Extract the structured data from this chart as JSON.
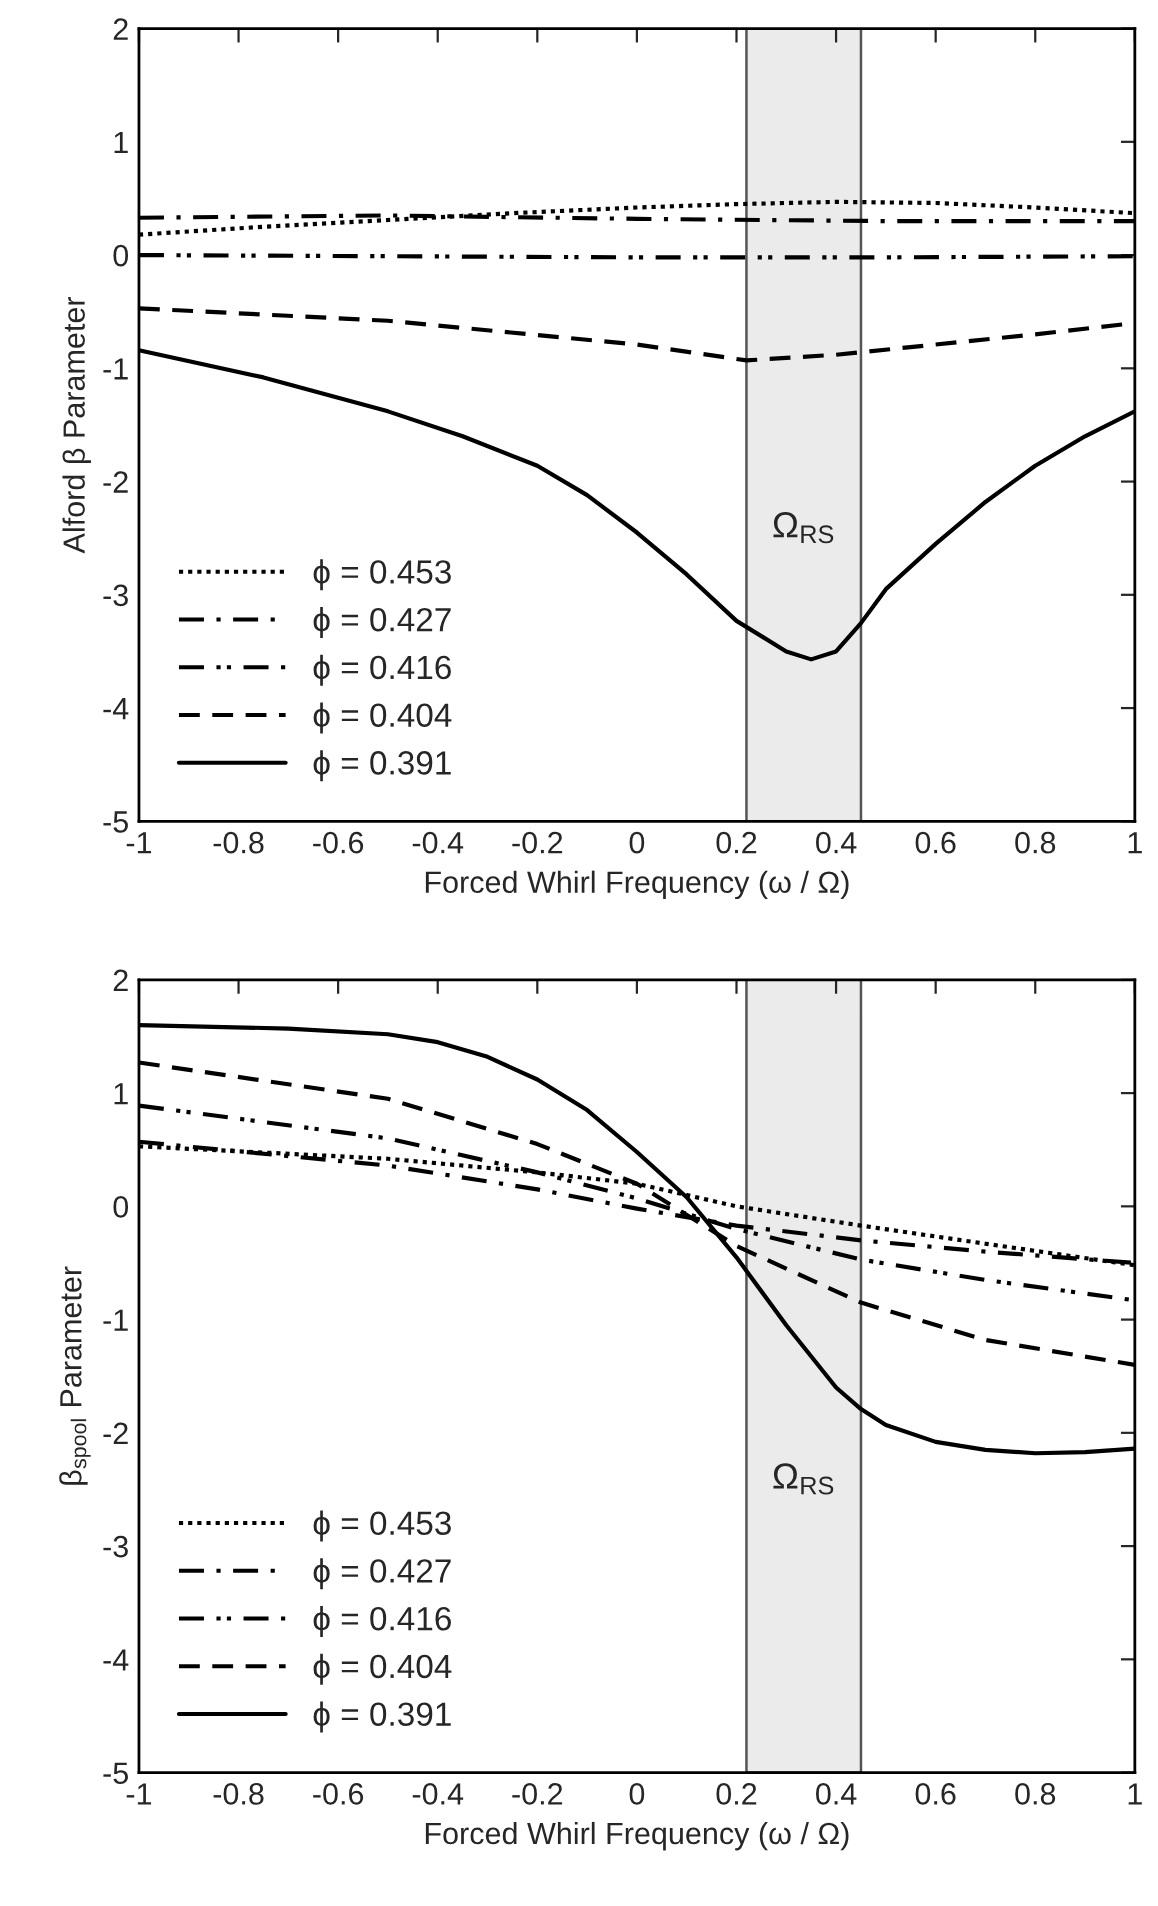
{
  "chart_data": [
    {
      "type": "line",
      "ylabel": "Alford β Parameter",
      "xlabel": "Forced Whirl Frequency (ω / Ω)",
      "xlim": [
        -1,
        1
      ],
      "xticks": [
        -1,
        -0.8,
        -0.6,
        -0.4,
        -0.2,
        0,
        0.2,
        0.4,
        0.6,
        0.8,
        1
      ],
      "ylim": [
        -5,
        2
      ],
      "yticks": [
        -5,
        -4,
        -3,
        -2,
        -1,
        0,
        1,
        2
      ],
      "grid": false,
      "legend": "bottom left",
      "bands": [
        {
          "axis": "x",
          "from": 0.22,
          "to": 0.45,
          "label": "Ω$_{RS}$",
          "color": "#ebebeb"
        }
      ],
      "series": [
        {
          "name": "ϕ = 0.453",
          "color": "#000000",
          "line_style": "dotted",
          "x": [
            -1,
            -0.75,
            -0.5,
            -0.25,
            0,
            0.2,
            0.4,
            0.6,
            0.8,
            1
          ],
          "values": [
            0.18,
            0.25,
            0.31,
            0.37,
            0.42,
            0.45,
            0.47,
            0.46,
            0.42,
            0.37
          ]
        },
        {
          "name": "ϕ = 0.427",
          "color": "#000000",
          "line_style": "dashdot",
          "x": [
            -1,
            -0.5,
            0,
            0.5,
            1
          ],
          "values": [
            0.33,
            0.35,
            0.32,
            0.3,
            0.3
          ]
        },
        {
          "name": "ϕ = 0.416",
          "color": "#000000",
          "line_style": "dashdotdot",
          "x": [
            -1,
            -0.5,
            0,
            0.5,
            1
          ],
          "values": [
            0.0,
            -0.01,
            -0.02,
            -0.02,
            -0.01
          ]
        },
        {
          "name": "ϕ = 0.404",
          "color": "#000000",
          "line_style": "dashed",
          "x": [
            -1,
            -0.5,
            0,
            0.22,
            0.4,
            0.6,
            0.8,
            1
          ],
          "values": [
            -0.47,
            -0.58,
            -0.79,
            -0.93,
            -0.88,
            -0.79,
            -0.7,
            -0.6
          ]
        },
        {
          "name": "ϕ = 0.391",
          "color": "#000000",
          "line_style": "solid",
          "x": [
            -1,
            -0.75,
            -0.5,
            -0.35,
            -0.2,
            -0.1,
            0,
            0.1,
            0.2,
            0.3,
            0.35,
            0.4,
            0.45,
            0.5,
            0.6,
            0.7,
            0.8,
            0.9,
            1
          ],
          "values": [
            -0.84,
            -1.08,
            -1.38,
            -1.6,
            -1.86,
            -2.12,
            -2.45,
            -2.82,
            -3.23,
            -3.5,
            -3.57,
            -3.5,
            -3.25,
            -2.95,
            -2.55,
            -2.18,
            -1.86,
            -1.6,
            -1.38
          ]
        }
      ]
    },
    {
      "type": "line",
      "ylabel": "β$_{spool}$ Parameter",
      "xlabel": "Forced Whirl Frequency (ω / Ω)",
      "xlim": [
        -1,
        1
      ],
      "xticks": [
        -1,
        -0.8,
        -0.6,
        -0.4,
        -0.2,
        0,
        0.2,
        0.4,
        0.6,
        0.8,
        1
      ],
      "ylim": [
        -5,
        2
      ],
      "yticks": [
        -5,
        -4,
        -3,
        -2,
        -1,
        0,
        1,
        2
      ],
      "grid": false,
      "legend": "bottom left",
      "bands": [
        {
          "axis": "x",
          "from": 0.22,
          "to": 0.45,
          "label": "Ω$_{RS}$",
          "color": "#ebebeb"
        }
      ],
      "series": [
        {
          "name": "ϕ = 0.453",
          "color": "#000000",
          "line_style": "dotted",
          "x": [
            -1,
            -0.5,
            -0.2,
            0,
            0.2,
            0.45,
            0.7,
            1
          ],
          "values": [
            0.53,
            0.42,
            0.3,
            0.2,
            0.0,
            -0.17,
            -0.33,
            -0.52
          ]
        },
        {
          "name": "ϕ = 0.427",
          "color": "#000000",
          "line_style": "dashdot",
          "x": [
            -1,
            -0.5,
            -0.2,
            0,
            0.2,
            0.45,
            0.7,
            1
          ],
          "values": [
            0.57,
            0.36,
            0.15,
            -0.02,
            -0.17,
            -0.3,
            -0.4,
            -0.5
          ]
        },
        {
          "name": "ϕ = 0.416",
          "color": "#000000",
          "line_style": "dashdotdot",
          "x": [
            -1,
            -0.5,
            -0.2,
            0,
            0.2,
            0.45,
            0.7,
            1
          ],
          "values": [
            0.89,
            0.6,
            0.3,
            0.07,
            -0.2,
            -0.47,
            -0.65,
            -0.83
          ]
        },
        {
          "name": "ϕ = 0.404",
          "color": "#000000",
          "line_style": "dashed",
          "x": [
            -1,
            -0.5,
            -0.2,
            0,
            0.2,
            0.45,
            0.7,
            1
          ],
          "values": [
            1.27,
            0.95,
            0.55,
            0.2,
            -0.35,
            -0.85,
            -1.18,
            -1.4
          ]
        },
        {
          "name": "ϕ = 0.391",
          "color": "#000000",
          "line_style": "solid",
          "x": [
            -1,
            -0.7,
            -0.5,
            -0.4,
            -0.3,
            -0.2,
            -0.1,
            0,
            0.1,
            0.2,
            0.3,
            0.4,
            0.45,
            0.5,
            0.6,
            0.7,
            0.8,
            0.9,
            1
          ],
          "values": [
            1.6,
            1.57,
            1.52,
            1.45,
            1.32,
            1.12,
            0.85,
            0.48,
            0.08,
            -0.45,
            -1.05,
            -1.6,
            -1.79,
            -1.93,
            -2.08,
            -2.15,
            -2.18,
            -2.17,
            -2.14
          ]
        }
      ]
    }
  ]
}
